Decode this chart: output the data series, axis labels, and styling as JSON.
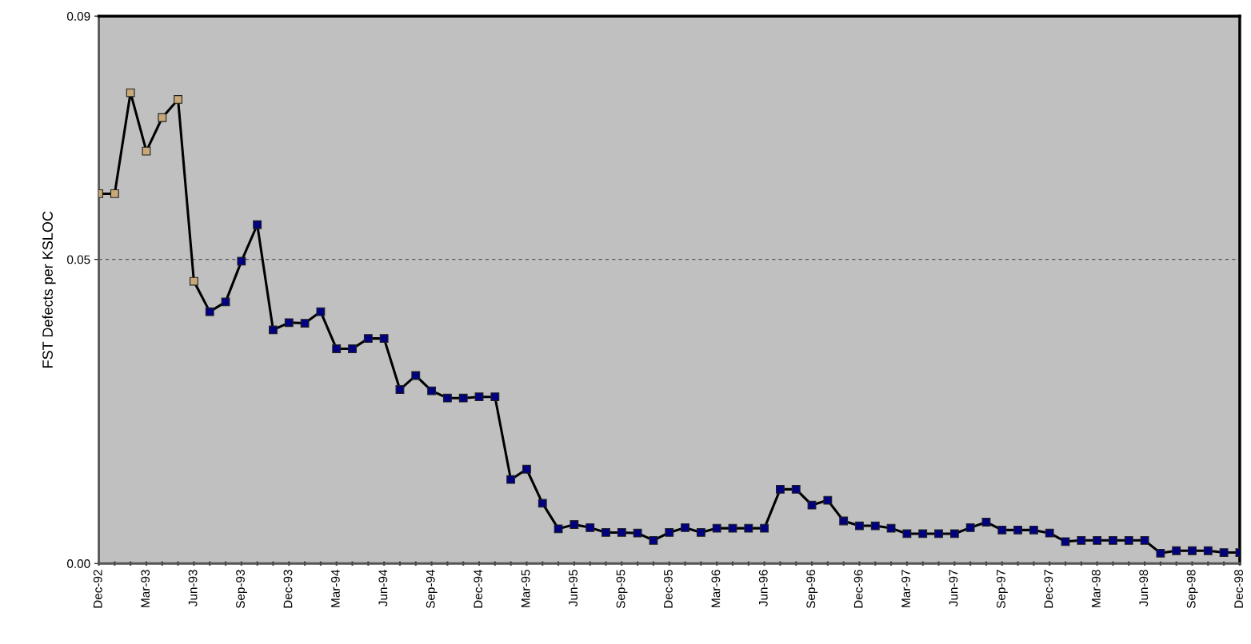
{
  "chart_data": {
    "type": "line",
    "ylabel": "FST Defects per KSLOC",
    "categories": [
      "Dec-92",
      null,
      null,
      "Mar-93",
      null,
      null,
      "Jun-93",
      null,
      null,
      "Sep-93",
      null,
      null,
      "Dec-93",
      null,
      null,
      "Mar-94",
      null,
      null,
      "Jun-94",
      null,
      null,
      "Sep-94",
      null,
      null,
      "Dec-94",
      null,
      null,
      "Mar-95",
      null,
      null,
      "Jun-95",
      null,
      null,
      "Sep-95",
      null,
      null,
      "Dec-95",
      null,
      null,
      "Mar-96",
      null,
      null,
      "Jun-96",
      null,
      null,
      "Sep-96",
      null,
      null,
      "Dec-96",
      null,
      null,
      "Mar-97",
      null,
      null,
      "Jun-97",
      null,
      null,
      "Sep-97",
      null,
      null,
      "Dec-97",
      null,
      null,
      "Mar-98",
      null,
      null,
      "Jun-98",
      null,
      null,
      "Sep-98",
      null,
      null,
      "Dec-98"
    ],
    "series": [
      {
        "color": "#000000",
        "colors": [
          "#c8a878",
          "#c8a878",
          "#c8a878",
          "#c8a878",
          "#c8a878",
          "#c8a878",
          "#c8a878",
          "#000080",
          "#000080",
          "#000080",
          "#000080",
          "#000080",
          "#000080",
          "#000080",
          "#000080",
          "#000080",
          "#000080",
          "#000080",
          "#000080",
          "#000080",
          "#000080",
          "#000080",
          "#000080",
          "#000080",
          "#000080",
          "#000080",
          "#000080",
          "#000080",
          "#000080",
          "#000080",
          "#000080",
          "#000080",
          "#000080",
          "#000080",
          "#000080",
          "#000080",
          "#000080",
          "#000080",
          "#000080",
          "#000080",
          "#000080",
          "#000080",
          "#000080",
          "#000080",
          "#000080",
          "#000080",
          "#000080",
          "#000080",
          "#000080",
          "#000080",
          "#000080",
          "#000080",
          "#000080",
          "#000080",
          "#000080",
          "#000080",
          "#000080",
          "#000080",
          "#000080",
          "#000080",
          "#000080",
          "#000080",
          "#000080",
          "#000080",
          "#000080",
          "#000080",
          "#000080",
          "#000080",
          "#000080",
          "#000080",
          "#000080",
          "#000080",
          "#000080"
        ],
        "values": [
          0.0608,
          0.0608,
          0.0774,
          0.0678,
          0.0733,
          0.0763,
          0.0464,
          0.0414,
          0.043,
          0.0497,
          0.0557,
          0.0384,
          0.0396,
          0.0395,
          0.0414,
          0.0353,
          0.0353,
          0.037,
          0.037,
          0.0286,
          0.0309,
          0.0284,
          0.0272,
          0.0272,
          0.0274,
          0.0274,
          0.0138,
          0.0155,
          0.0099,
          0.0057,
          0.0064,
          0.0059,
          0.0051,
          0.0051,
          0.005,
          0.0038,
          0.0051,
          0.0059,
          0.0051,
          0.0058,
          0.0058,
          0.0058,
          0.0058,
          0.0122,
          0.0122,
          0.0096,
          0.0104,
          0.007,
          0.0062,
          0.0062,
          0.0058,
          0.0049,
          0.0049,
          0.0049,
          0.0049,
          0.0059,
          0.0068,
          0.0055,
          0.0055,
          0.0055,
          0.005,
          0.0036,
          0.0038,
          0.0038,
          0.0038,
          0.0038,
          0.0038,
          0.0017,
          0.0021,
          0.0021,
          0.0021,
          0.0018,
          0.0018
        ]
      }
    ],
    "ylim": [
      0,
      0.09
    ],
    "yticks": [
      {
        "value": 0,
        "label": "0.00"
      },
      {
        "value": 0.05,
        "label": "0.05"
      },
      {
        "value": 0.09,
        "label": "0.09"
      }
    ],
    "grid": "y",
    "marker": "square",
    "line_style": "solid"
  }
}
